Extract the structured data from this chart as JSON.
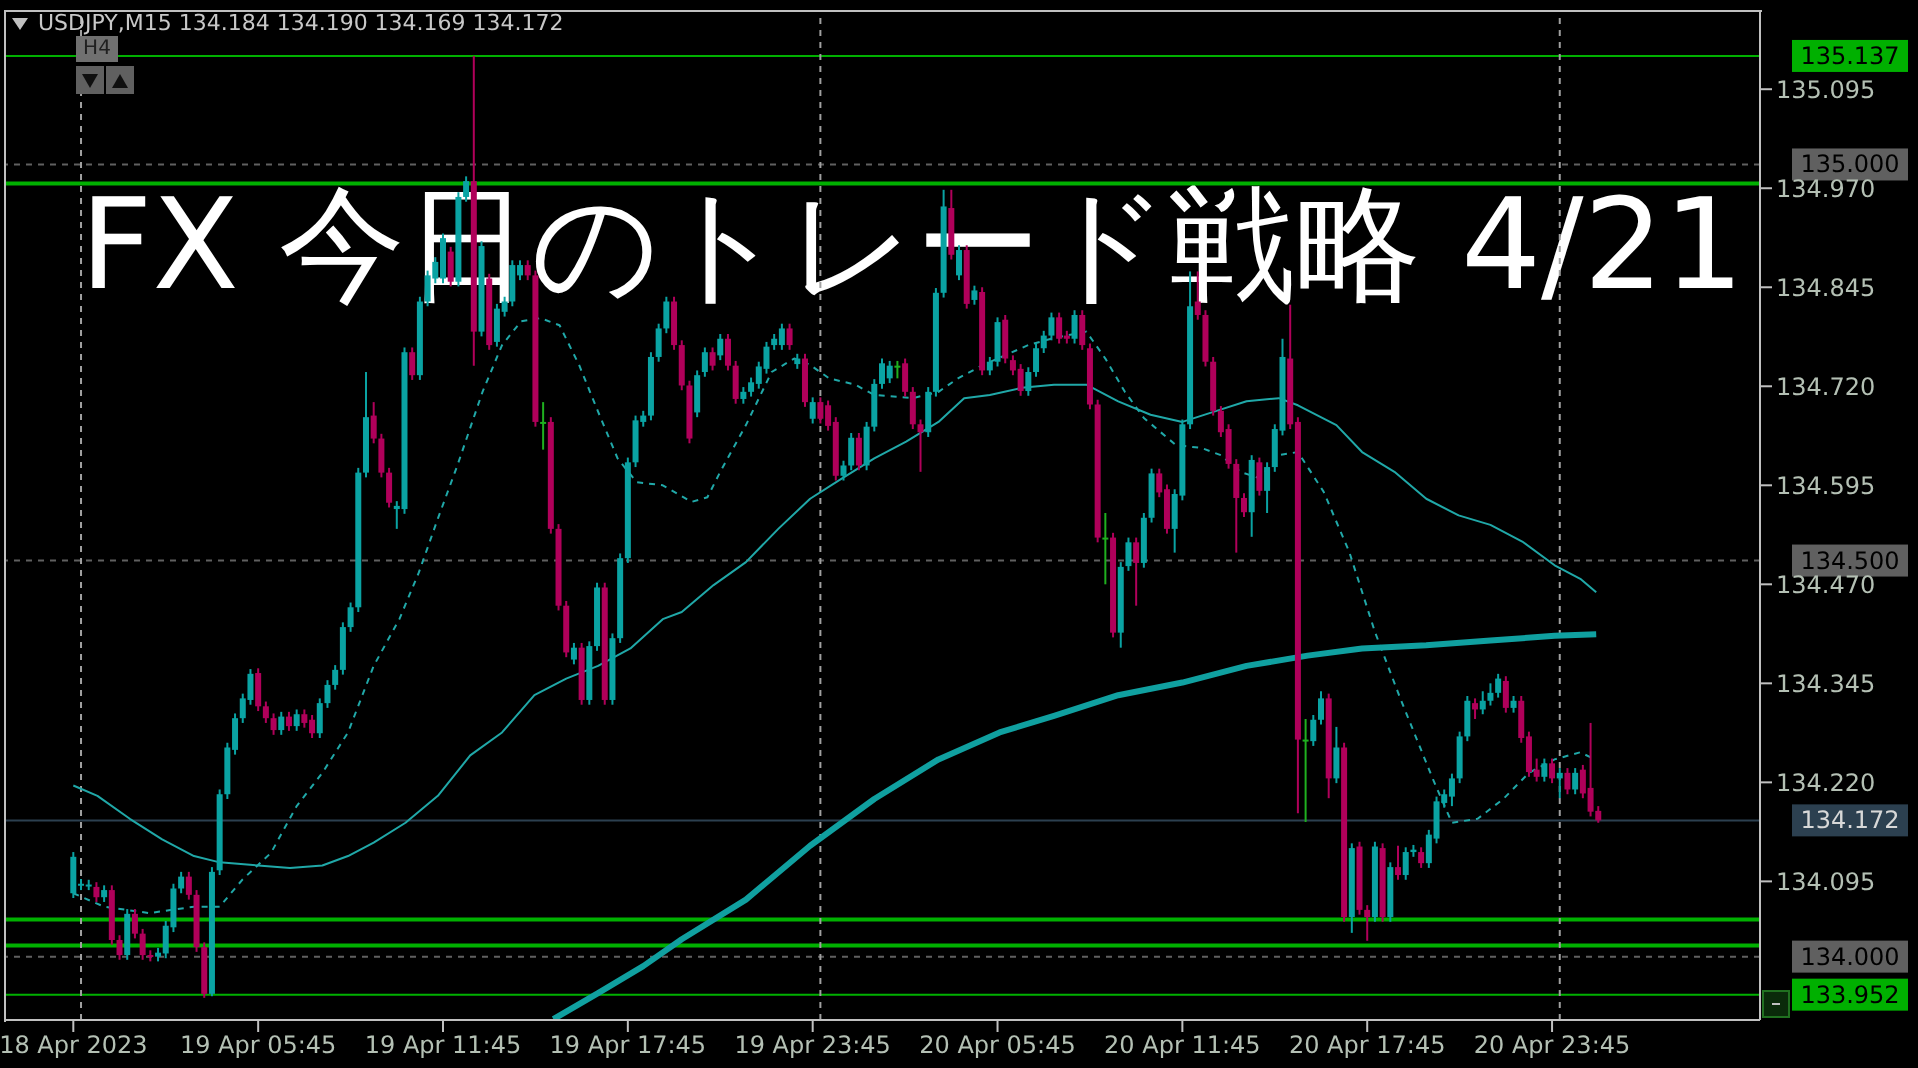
{
  "chart_data": {
    "type": "candlestick",
    "title": "FX 今日のトレード戦略 4/21",
    "annotations": [
      "USDJPY,M15 134.184 134.190 134.169 134.172",
      "H4"
    ],
    "xlim": [
      "2023-04-18T21:30",
      "2023-04-21T06:30"
    ],
    "xticks": [
      {
        "value": "2023-04-18T23:45",
        "label": "18 Apr 2023"
      },
      {
        "value": "2023-04-19T05:45",
        "label": "19 Apr 05:45"
      },
      {
        "value": "2023-04-19T11:45",
        "label": "19 Apr 11:45"
      },
      {
        "value": "2023-04-19T17:45",
        "label": "19 Apr 17:45"
      },
      {
        "value": "2023-04-19T23:45",
        "label": "19 Apr 23:45"
      },
      {
        "value": "2023-04-20T05:45",
        "label": "20 Apr 05:45"
      },
      {
        "value": "2023-04-20T11:45",
        "label": "20 Apr 11:45"
      },
      {
        "value": "2023-04-20T17:45",
        "label": "20 Apr 17:45"
      },
      {
        "value": "2023-04-20T23:45",
        "label": "20 Apr 23:45"
      }
    ],
    "ylim": [
      133.92,
      135.195
    ],
    "yticks": [
      134.095,
      {
        "value": 134.22,
        "label": "134.220"
      },
      134.345,
      {
        "value": 134.47,
        "label": "134.470"
      },
      134.595,
      {
        "value": 134.72,
        "label": "134.720"
      },
      134.845,
      {
        "value": 134.97,
        "label": "134.970"
      },
      135.095
    ],
    "x": [
      "2023-04-18T23:45",
      "2023-04-19T00:00",
      "2023-04-19T00:15",
      "2023-04-19T00:30",
      "2023-04-19T00:45",
      "2023-04-19T01:00",
      "2023-04-19T01:15",
      "2023-04-19T01:30",
      "2023-04-19T01:45",
      "2023-04-19T02:00",
      "2023-04-19T02:15",
      "2023-04-19T02:30",
      "2023-04-19T02:45",
      "2023-04-19T03:00",
      "2023-04-19T03:15",
      "2023-04-19T03:30",
      "2023-04-19T03:45",
      "2023-04-19T04:00",
      "2023-04-19T04:15",
      "2023-04-19T04:30",
      "2023-04-19T04:45",
      "2023-04-19T05:00",
      "2023-04-19T05:15",
      "2023-04-19T05:30",
      "2023-04-19T05:45",
      "2023-04-19T06:00",
      "2023-04-19T06:15",
      "2023-04-19T06:30",
      "2023-04-19T06:45",
      "2023-04-19T07:00",
      "2023-04-19T07:15",
      "2023-04-19T07:30",
      "2023-04-19T07:45",
      "2023-04-19T08:00",
      "2023-04-19T08:15",
      "2023-04-19T08:30",
      "2023-04-19T08:45",
      "2023-04-19T09:00",
      "2023-04-19T09:15",
      "2023-04-19T09:30",
      "2023-04-19T09:45",
      "2023-04-19T10:00",
      "2023-04-19T10:15",
      "2023-04-19T10:30",
      "2023-04-19T10:45",
      "2023-04-19T11:00",
      "2023-04-19T11:15",
      "2023-04-19T11:30",
      "2023-04-19T11:45",
      "2023-04-19T12:00",
      "2023-04-19T12:15",
      "2023-04-19T12:30",
      "2023-04-19T12:45",
      "2023-04-19T13:00",
      "2023-04-19T13:15",
      "2023-04-19T13:30",
      "2023-04-19T13:45",
      "2023-04-19T14:00",
      "2023-04-19T14:15",
      "2023-04-19T14:30",
      "2023-04-19T14:45",
      "2023-04-19T15:00",
      "2023-04-19T15:15",
      "2023-04-19T15:30",
      "2023-04-19T15:45",
      "2023-04-19T16:00",
      "2023-04-19T16:15",
      "2023-04-19T16:30",
      "2023-04-19T16:45",
      "2023-04-19T17:00",
      "2023-04-19T17:15",
      "2023-04-19T17:30",
      "2023-04-19T17:45",
      "2023-04-19T18:00",
      "2023-04-19T18:15",
      "2023-04-19T18:30",
      "2023-04-19T18:45",
      "2023-04-19T19:00",
      "2023-04-19T19:15",
      "2023-04-19T19:30",
      "2023-04-19T19:45",
      "2023-04-19T20:00",
      "2023-04-19T20:15",
      "2023-04-19T20:30",
      "2023-04-19T20:45",
      "2023-04-19T21:00",
      "2023-04-19T21:15",
      "2023-04-19T21:30",
      "2023-04-19T21:45",
      "2023-04-19T22:00",
      "2023-04-19T22:15",
      "2023-04-19T22:30",
      "2023-04-19T22:45",
      "2023-04-19T23:00",
      "2023-04-19T23:15",
      "2023-04-19T23:30",
      "2023-04-19T23:45",
      "2023-04-20T00:00",
      "2023-04-20T00:15",
      "2023-04-20T00:30",
      "2023-04-20T00:45",
      "2023-04-20T01:00",
      "2023-04-20T01:15",
      "2023-04-20T01:30",
      "2023-04-20T01:45",
      "2023-04-20T02:00",
      "2023-04-20T02:15",
      "2023-04-20T02:30",
      "2023-04-20T02:45",
      "2023-04-20T03:00",
      "2023-04-20T03:15",
      "2023-04-20T03:30",
      "2023-04-20T03:45",
      "2023-04-20T04:00",
      "2023-04-20T04:15",
      "2023-04-20T04:30",
      "2023-04-20T04:45",
      "2023-04-20T05:00",
      "2023-04-20T05:15",
      "2023-04-20T05:30",
      "2023-04-20T05:45",
      "2023-04-20T06:00",
      "2023-04-20T06:15",
      "2023-04-20T06:30",
      "2023-04-20T06:45",
      "2023-04-20T07:00",
      "2023-04-20T07:15",
      "2023-04-20T07:30",
      "2023-04-20T07:45",
      "2023-04-20T08:00",
      "2023-04-20T08:15",
      "2023-04-20T08:30",
      "2023-04-20T08:45",
      "2023-04-20T09:00",
      "2023-04-20T09:15",
      "2023-04-20T09:30",
      "2023-04-20T09:45",
      "2023-04-20T10:00",
      "2023-04-20T10:15",
      "2023-04-20T10:30",
      "2023-04-20T10:45",
      "2023-04-20T11:00",
      "2023-04-20T11:15",
      "2023-04-20T11:30",
      "2023-04-20T11:45",
      "2023-04-20T12:00",
      "2023-04-20T12:15",
      "2023-04-20T12:30",
      "2023-04-20T12:45",
      "2023-04-20T13:00",
      "2023-04-20T13:15",
      "2023-04-20T13:30",
      "2023-04-20T13:45",
      "2023-04-20T14:00",
      "2023-04-20T14:15",
      "2023-04-20T14:30",
      "2023-04-20T14:45",
      "2023-04-20T15:00",
      "2023-04-20T15:15",
      "2023-04-20T15:30",
      "2023-04-20T15:45",
      "2023-04-20T16:00",
      "2023-04-20T16:15",
      "2023-04-20T16:30",
      "2023-04-20T16:45",
      "2023-04-20T17:00",
      "2023-04-20T17:15",
      "2023-04-20T17:30",
      "2023-04-20T17:45",
      "2023-04-20T18:00",
      "2023-04-20T18:15",
      "2023-04-20T18:30",
      "2023-04-20T18:45",
      "2023-04-20T19:00",
      "2023-04-20T19:15",
      "2023-04-20T19:30",
      "2023-04-20T19:45",
      "2023-04-20T20:00",
      "2023-04-20T20:15",
      "2023-04-20T20:30",
      "2023-04-20T20:45",
      "2023-04-20T21:00",
      "2023-04-20T21:15",
      "2023-04-20T21:30",
      "2023-04-20T21:45",
      "2023-04-20T22:00",
      "2023-04-20T22:15",
      "2023-04-20T22:30",
      "2023-04-20T22:45",
      "2023-04-20T23:00",
      "2023-04-20T23:15",
      "2023-04-20T23:30",
      "2023-04-20T23:45",
      "2023-04-21T00:00",
      "2023-04-21T00:15",
      "2023-04-21T00:30",
      "2023-04-21T00:45",
      "2023-04-21T01:00",
      "2023-04-21T01:15"
    ],
    "ohlc": [
      [
        134.08,
        134.132,
        134.074,
        134.126
      ],
      [
        134.09,
        134.098,
        134.084,
        134.092
      ],
      [
        134.09,
        134.097,
        134.084,
        134.091
      ],
      [
        134.088,
        134.094,
        134.069,
        134.075
      ],
      [
        134.075,
        134.09,
        134.069,
        134.084
      ],
      [
        134.084,
        134.09,
        134.015,
        134.021
      ],
      [
        134.021,
        134.027,
        133.996,
        134.002
      ],
      [
        134.002,
        134.06,
        133.996,
        134.054
      ],
      [
        134.054,
        134.06,
        134.023,
        134.029
      ],
      [
        134.029,
        134.035,
        133.996,
        134.002
      ],
      [
        134.002,
        134.008,
        133.994,
        134.0
      ],
      [
        134.0,
        134.011,
        133.994,
        134.005
      ],
      [
        134.004,
        134.045,
        133.998,
        134.039
      ],
      [
        134.037,
        134.092,
        134.031,
        134.086
      ],
      [
        134.086,
        134.107,
        134.08,
        134.101
      ],
      [
        134.101,
        134.107,
        134.072,
        134.078
      ],
      [
        134.078,
        134.084,
        134.006,
        134.012
      ],
      [
        134.012,
        134.018,
        133.948,
        133.953
      ],
      [
        133.953,
        134.113,
        133.95,
        134.107
      ],
      [
        134.109,
        134.211,
        134.103,
        134.205
      ],
      [
        134.205,
        134.27,
        134.199,
        134.264
      ],
      [
        134.261,
        134.307,
        134.255,
        134.301
      ],
      [
        134.301,
        134.332,
        134.295,
        134.326
      ],
      [
        134.324,
        134.363,
        134.318,
        134.357
      ],
      [
        134.358,
        134.364,
        134.31,
        134.316
      ],
      [
        134.316,
        134.322,
        134.295,
        134.301
      ],
      [
        134.301,
        134.307,
        134.28,
        134.286
      ],
      [
        134.286,
        134.309,
        134.28,
        134.303
      ],
      [
        134.303,
        134.309,
        134.285,
        134.291
      ],
      [
        134.291,
        134.312,
        134.285,
        134.306
      ],
      [
        134.306,
        134.312,
        134.289,
        134.295
      ],
      [
        134.299,
        134.305,
        134.276,
        134.282
      ],
      [
        134.282,
        134.326,
        134.276,
        134.32
      ],
      [
        134.32,
        134.349,
        134.314,
        134.343
      ],
      [
        134.343,
        134.368,
        134.337,
        134.362
      ],
      [
        134.362,
        134.422,
        134.356,
        134.416
      ],
      [
        134.416,
        134.447,
        134.41,
        134.441
      ],
      [
        134.441,
        134.617,
        134.435,
        134.611
      ],
      [
        134.611,
        134.738,
        134.605,
        134.681
      ],
      [
        134.683,
        134.7,
        134.648,
        134.654
      ],
      [
        134.654,
        134.66,
        134.605,
        134.611
      ],
      [
        134.611,
        134.617,
        134.567,
        134.573
      ],
      [
        134.565,
        134.575,
        134.54,
        134.569
      ],
      [
        134.565,
        134.769,
        134.559,
        134.763
      ],
      [
        134.763,
        134.769,
        134.728,
        134.734
      ],
      [
        134.734,
        134.833,
        134.728,
        134.827
      ],
      [
        134.827,
        134.866,
        134.821,
        134.86
      ],
      [
        134.856,
        134.883,
        134.85,
        134.877
      ],
      [
        134.856,
        134.913,
        134.85,
        134.907
      ],
      [
        134.89,
        134.896,
        134.846,
        134.852
      ],
      [
        134.852,
        134.965,
        134.846,
        134.959
      ],
      [
        134.959,
        134.985,
        134.953,
        134.979
      ],
      [
        134.979,
        135.137,
        134.746,
        134.789
      ],
      [
        134.789,
        134.903,
        134.783,
        134.897
      ],
      [
        134.856,
        134.862,
        134.766,
        134.772
      ],
      [
        134.776,
        134.824,
        134.77,
        134.818
      ],
      [
        134.814,
        134.833,
        134.808,
        134.827
      ],
      [
        134.827,
        134.879,
        134.821,
        134.873
      ],
      [
        134.86,
        134.879,
        134.854,
        134.873
      ],
      [
        134.873,
        134.879,
        134.854,
        134.86
      ],
      [
        134.86,
        134.866,
        134.669,
        134.675
      ],
      [
        134.675,
        134.7,
        134.64,
        134.675
      ],
      [
        134.675,
        134.681,
        134.534,
        134.54
      ],
      [
        134.54,
        134.546,
        134.437,
        134.443
      ],
      [
        134.443,
        134.449,
        134.378,
        134.384
      ],
      [
        134.375,
        134.396,
        134.369,
        134.39
      ],
      [
        134.39,
        134.396,
        134.318,
        134.324
      ],
      [
        134.324,
        134.398,
        134.318,
        134.392
      ],
      [
        134.392,
        134.472,
        134.386,
        134.466
      ],
      [
        134.466,
        134.472,
        134.318,
        134.324
      ],
      [
        134.324,
        134.408,
        134.318,
        134.402
      ],
      [
        134.402,
        134.509,
        134.396,
        134.503
      ],
      [
        134.503,
        134.63,
        134.497,
        134.624
      ],
      [
        134.624,
        134.683,
        134.618,
        134.677
      ],
      [
        134.675,
        134.689,
        134.669,
        134.683
      ],
      [
        134.683,
        134.763,
        134.677,
        134.757
      ],
      [
        134.757,
        134.799,
        134.751,
        134.793
      ],
      [
        134.793,
        134.833,
        134.787,
        134.827
      ],
      [
        134.827,
        134.833,
        134.766,
        134.772
      ],
      [
        134.772,
        134.778,
        134.715,
        134.721
      ],
      [
        134.721,
        134.727,
        134.648,
        134.654
      ],
      [
        134.687,
        134.74,
        134.681,
        134.734
      ],
      [
        134.738,
        134.769,
        134.732,
        134.763
      ],
      [
        134.763,
        134.769,
        134.74,
        134.746
      ],
      [
        134.759,
        134.786,
        134.753,
        134.78
      ],
      [
        134.78,
        134.786,
        134.74,
        134.746
      ],
      [
        134.746,
        134.752,
        134.698,
        134.704
      ],
      [
        134.704,
        134.719,
        134.698,
        134.713
      ],
      [
        134.713,
        134.731,
        134.707,
        134.725
      ],
      [
        134.723,
        134.751,
        134.717,
        134.745
      ],
      [
        134.742,
        134.776,
        134.736,
        134.77
      ],
      [
        134.772,
        134.786,
        134.766,
        134.78
      ],
      [
        134.772,
        134.799,
        134.766,
        134.793
      ],
      [
        134.793,
        134.799,
        134.766,
        134.772
      ],
      [
        134.748,
        134.761,
        134.742,
        134.755
      ],
      [
        134.755,
        134.761,
        134.694,
        134.7
      ],
      [
        134.679,
        134.706,
        134.673,
        134.7
      ],
      [
        134.7,
        134.706,
        134.673,
        134.679
      ],
      [
        134.696,
        134.702,
        134.664,
        134.67
      ],
      [
        134.675,
        134.681,
        134.601,
        134.607
      ],
      [
        134.607,
        134.626,
        134.601,
        134.62
      ],
      [
        134.62,
        134.661,
        134.614,
        134.655
      ],
      [
        134.655,
        134.661,
        134.614,
        134.62
      ],
      [
        134.62,
        134.675,
        134.614,
        134.669
      ],
      [
        134.669,
        134.729,
        134.663,
        134.723
      ],
      [
        134.723,
        134.755,
        134.717,
        134.749
      ],
      [
        134.73,
        134.752,
        134.724,
        134.746
      ],
      [
        134.746,
        134.752,
        134.73,
        134.746
      ],
      [
        134.749,
        134.755,
        134.707,
        134.713
      ],
      [
        134.713,
        134.719,
        134.666,
        134.672
      ],
      [
        134.672,
        134.678,
        134.612,
        134.662
      ],
      [
        134.662,
        134.719,
        134.656,
        134.713
      ],
      [
        134.713,
        134.844,
        134.707,
        134.838
      ],
      [
        134.838,
        134.968,
        134.832,
        134.947
      ],
      [
        134.945,
        134.968,
        134.88,
        134.886
      ],
      [
        134.86,
        134.898,
        134.854,
        134.892
      ],
      [
        134.892,
        134.898,
        134.818,
        134.824
      ],
      [
        134.829,
        134.847,
        134.823,
        134.841
      ],
      [
        134.839,
        134.845,
        134.734,
        134.74
      ],
      [
        134.74,
        134.757,
        134.734,
        134.751
      ],
      [
        134.751,
        134.807,
        134.745,
        134.801
      ],
      [
        134.804,
        134.81,
        134.749,
        134.755
      ],
      [
        134.753,
        134.759,
        134.734,
        134.74
      ],
      [
        134.742,
        134.748,
        134.708,
        134.714
      ],
      [
        134.714,
        134.744,
        134.708,
        134.738
      ],
      [
        134.738,
        134.774,
        134.732,
        134.768
      ],
      [
        134.768,
        134.79,
        134.762,
        134.784
      ],
      [
        134.784,
        134.813,
        134.778,
        134.807
      ],
      [
        134.807,
        134.813,
        134.774,
        134.78
      ],
      [
        134.784,
        134.79,
        134.774,
        134.78
      ],
      [
        134.78,
        134.816,
        134.774,
        134.81
      ],
      [
        134.81,
        134.816,
        134.766,
        134.772
      ],
      [
        134.768,
        134.774,
        134.691,
        134.697
      ],
      [
        134.697,
        134.703,
        134.523,
        134.529
      ],
      [
        134.529,
        134.56,
        134.47,
        134.529
      ],
      [
        134.529,
        134.535,
        134.403,
        134.409
      ],
      [
        134.409,
        134.498,
        134.39,
        134.492
      ],
      [
        134.493,
        134.529,
        134.487,
        134.523
      ],
      [
        134.523,
        134.529,
        134.443,
        134.497
      ],
      [
        134.497,
        134.56,
        134.491,
        134.554
      ],
      [
        134.554,
        134.616,
        134.548,
        134.61
      ],
      [
        134.61,
        134.616,
        134.58,
        134.586
      ],
      [
        134.59,
        134.596,
        134.534,
        134.54
      ],
      [
        134.54,
        134.59,
        134.51,
        134.584
      ],
      [
        134.582,
        134.678,
        134.576,
        134.672
      ],
      [
        134.672,
        134.865,
        134.666,
        134.821
      ],
      [
        134.827,
        134.865,
        134.804,
        134.81
      ],
      [
        134.81,
        134.816,
        134.745,
        134.751
      ],
      [
        134.751,
        134.757,
        134.683,
        134.689
      ],
      [
        134.689,
        134.695,
        134.656,
        134.662
      ],
      [
        134.666,
        134.672,
        134.616,
        134.622
      ],
      [
        134.622,
        134.628,
        134.51,
        134.579
      ],
      [
        134.579,
        134.585,
        134.555,
        134.561
      ],
      [
        134.561,
        134.633,
        134.53,
        134.627
      ],
      [
        134.624,
        134.63,
        134.582,
        134.588
      ],
      [
        134.588,
        134.624,
        134.56,
        134.618
      ],
      [
        134.618,
        134.672,
        134.612,
        134.666
      ],
      [
        134.664,
        134.78,
        134.658,
        134.757
      ],
      [
        134.755,
        134.823,
        134.666,
        134.672
      ],
      [
        134.675,
        134.681,
        134.181,
        134.274
      ],
      [
        134.274,
        134.3,
        134.17,
        134.274
      ],
      [
        134.272,
        134.305,
        134.266,
        134.299
      ],
      [
        134.299,
        134.335,
        134.293,
        134.326
      ],
      [
        134.326,
        134.332,
        134.2,
        134.225
      ],
      [
        134.225,
        134.29,
        134.219,
        134.264
      ],
      [
        134.264,
        134.27,
        134.044,
        134.05
      ],
      [
        134.05,
        134.143,
        134.03,
        134.137
      ],
      [
        134.139,
        134.145,
        134.053,
        134.059
      ],
      [
        134.059,
        134.065,
        134.02,
        134.05
      ],
      [
        134.05,
        134.145,
        134.044,
        134.139
      ],
      [
        134.137,
        134.143,
        134.044,
        134.05
      ],
      [
        134.05,
        134.119,
        134.044,
        134.113
      ],
      [
        134.113,
        134.14,
        134.097,
        134.103
      ],
      [
        134.103,
        134.138,
        134.097,
        134.132
      ],
      [
        134.132,
        134.141,
        134.126,
        134.135
      ],
      [
        134.132,
        134.138,
        134.112,
        134.118
      ],
      [
        134.118,
        134.16,
        134.112,
        134.154
      ],
      [
        134.149,
        134.202,
        134.143,
        134.196
      ],
      [
        134.194,
        134.211,
        134.188,
        134.205
      ],
      [
        134.202,
        134.231,
        134.19,
        134.225
      ],
      [
        134.225,
        134.284,
        134.219,
        134.278
      ],
      [
        134.278,
        134.329,
        134.272,
        134.323
      ],
      [
        134.32,
        134.326,
        134.3,
        134.312
      ],
      [
        134.312,
        134.335,
        134.306,
        134.323
      ],
      [
        134.323,
        134.345,
        134.317,
        134.333
      ],
      [
        134.333,
        134.357,
        134.327,
        134.351
      ],
      [
        134.348,
        134.354,
        134.308,
        134.314
      ],
      [
        134.314,
        134.329,
        134.308,
        134.323
      ],
      [
        134.323,
        134.329,
        134.27,
        134.276
      ],
      [
        134.278,
        134.284,
        134.227,
        134.233
      ],
      [
        134.236,
        134.25,
        134.221,
        134.227
      ],
      [
        134.227,
        134.25,
        134.221,
        134.244
      ],
      [
        134.244,
        134.25,
        134.219,
        134.225
      ],
      [
        134.225,
        134.238,
        134.2,
        134.232
      ],
      [
        134.232,
        134.238,
        134.205,
        134.211
      ],
      [
        134.211,
        134.238,
        134.205,
        134.232
      ],
      [
        134.236,
        134.242,
        134.2,
        134.206
      ],
      [
        134.213,
        134.295,
        134.177,
        134.183
      ],
      [
        134.184,
        134.19,
        134.169,
        134.172
      ]
    ],
    "colors": [
      "#0aa3a3",
      "#0aa3a3",
      "#0aa3a3",
      "#b0005a",
      "#0aa3a3",
      "#b0005a",
      "#b0005a",
      "#0aa3a3",
      "#b0005a",
      "#b0005a",
      "#b0005a",
      "#0aa3a3",
      "#0aa3a3",
      "#0aa3a3",
      "#0aa3a3",
      "#b0005a",
      "#b0005a",
      "#b0005a",
      "#0aa3a3",
      "#0aa3a3",
      "#0aa3a3",
      "#0aa3a3",
      "#0aa3a3",
      "#0aa3a3",
      "#b0005a",
      "#b0005a",
      "#b0005a",
      "#0aa3a3",
      "#b0005a",
      "#0aa3a3",
      "#b0005a",
      "#b0005a",
      "#0aa3a3",
      "#0aa3a3",
      "#0aa3a3",
      "#0aa3a3",
      "#0aa3a3",
      "#0aa3a3",
      "#0aa3a3",
      "#b0005a",
      "#b0005a",
      "#b0005a",
      "#0aa3a3",
      "#0aa3a3",
      "#b0005a",
      "#0aa3a3",
      "#0aa3a3",
      "#0aa3a3",
      "#0aa3a3",
      "#b0005a",
      "#0aa3a3",
      "#0aa3a3",
      "#b0005a",
      "#0aa3a3",
      "#b0005a",
      "#0aa3a3",
      "#0aa3a3",
      "#0aa3a3",
      "#0aa3a3",
      "#b0005a",
      "#b0005a",
      "#1fb01f",
      "#b0005a",
      "#b0005a",
      "#b0005a",
      "#0aa3a3",
      "#b0005a",
      "#0aa3a3",
      "#0aa3a3",
      "#b0005a",
      "#0aa3a3",
      "#0aa3a3",
      "#0aa3a3",
      "#0aa3a3",
      "#0aa3a3",
      "#0aa3a3",
      "#0aa3a3",
      "#0aa3a3",
      "#b0005a",
      "#b0005a",
      "#b0005a",
      "#0aa3a3",
      "#0aa3a3",
      "#b0005a",
      "#0aa3a3",
      "#b0005a",
      "#b0005a",
      "#0aa3a3",
      "#0aa3a3",
      "#0aa3a3",
      "#0aa3a3",
      "#0aa3a3",
      "#0aa3a3",
      "#b0005a",
      "#0aa3a3",
      "#b0005a",
      "#0aa3a3",
      "#b0005a",
      "#b0005a",
      "#b0005a",
      "#0aa3a3",
      "#0aa3a3",
      "#b0005a",
      "#0aa3a3",
      "#0aa3a3",
      "#0aa3a3",
      "#0aa3a3",
      "#1fb01f",
      "#b0005a",
      "#b0005a",
      "#b0005a",
      "#0aa3a3",
      "#0aa3a3",
      "#0aa3a3",
      "#b0005a",
      "#0aa3a3",
      "#b0005a",
      "#0aa3a3",
      "#b0005a",
      "#0aa3a3",
      "#0aa3a3",
      "#b0005a",
      "#b0005a",
      "#b0005a",
      "#0aa3a3",
      "#0aa3a3",
      "#0aa3a3",
      "#0aa3a3",
      "#b0005a",
      "#b0005a",
      "#0aa3a3",
      "#b0005a",
      "#b0005a",
      "#b0005a",
      "#1fb01f",
      "#b0005a",
      "#0aa3a3",
      "#0aa3a3",
      "#b0005a",
      "#0aa3a3",
      "#0aa3a3",
      "#b0005a",
      "#b0005a",
      "#0aa3a3",
      "#0aa3a3",
      "#0aa3a3",
      "#b0005a",
      "#b0005a",
      "#b0005a",
      "#b0005a",
      "#b0005a",
      "#b0005a",
      "#b0005a",
      "#0aa3a3",
      "#b0005a",
      "#0aa3a3",
      "#0aa3a3",
      "#0aa3a3",
      "#b0005a",
      "#b0005a",
      "#1fb01f",
      "#0aa3a3",
      "#0aa3a3",
      "#b0005a",
      "#0aa3a3",
      "#b0005a",
      "#0aa3a3",
      "#b0005a",
      "#b0005a",
      "#0aa3a3",
      "#b0005a",
      "#0aa3a3",
      "#b0005a",
      "#0aa3a3",
      "#0aa3a3",
      "#b0005a",
      "#0aa3a3",
      "#0aa3a3",
      "#0aa3a3",
      "#0aa3a3",
      "#0aa3a3",
      "#0aa3a3",
      "#b0005a",
      "#0aa3a3",
      "#0aa3a3",
      "#0aa3a3",
      "#b0005a",
      "#0aa3a3",
      "#b0005a",
      "#b0005a",
      "#b0005a",
      "#0aa3a3",
      "#b0005a",
      "#0aa3a3",
      "#b0005a",
      "#0aa3a3",
      "#b0005a",
      "#b0005a",
      "#b0005a"
    ],
    "series": [
      {
        "type": "line",
        "color": "#20a8a8",
        "line_style": "dashed",
        "x": [
          "2023-04-18T23:45",
          "2023-04-19T00:45",
          "2023-04-19T02:13",
          "2023-04-19T03:40",
          "2023-04-19T04:30",
          "2023-04-19T05:14",
          "2023-04-19T06:10",
          "2023-04-19T07:00",
          "2023-04-19T07:50",
          "2023-04-19T08:40",
          "2023-04-19T09:30",
          "2023-04-19T10:20",
          "2023-04-19T10:58",
          "2023-04-19T11:35",
          "2023-04-19T12:13",
          "2023-04-19T13:02",
          "2023-04-19T13:40",
          "2023-04-19T14:17",
          "2023-04-19T14:55",
          "2023-04-19T15:32",
          "2023-04-19T16:10",
          "2023-04-19T16:47",
          "2023-04-19T17:25",
          "2023-04-19T18:02",
          "2023-04-19T18:53",
          "2023-04-19T19:49",
          "2023-04-19T20:20",
          "2023-04-19T20:45",
          "2023-04-19T21:35",
          "2023-04-19T22:25",
          "2023-04-19T23:09",
          "2023-04-19T23:40",
          "2023-04-20T00:17",
          "2023-04-20T01:08",
          "2023-04-20T01:45",
          "2023-04-20T03:00",
          "2023-04-20T03:50",
          "2023-04-20T04:28",
          "2023-04-20T05:17",
          "2023-04-20T06:45",
          "2023-04-20T07:35",
          "2023-04-20T08:38",
          "2023-04-20T09:15",
          "2023-04-20T09:53",
          "2023-04-20T10:30",
          "2023-04-20T11:32",
          "2023-04-20T12:23",
          "2023-04-20T13:00",
          "2023-04-20T13:38",
          "2023-04-20T14:15",
          "2023-04-20T14:53",
          "2023-04-20T15:30",
          "2023-04-20T16:20",
          "2023-04-20T17:10",
          "2023-04-20T18:00",
          "2023-04-20T18:50",
          "2023-04-20T19:53",
          "2023-04-20T20:30",
          "2023-04-20T21:20",
          "2023-04-20T22:10",
          "2023-04-20T23:00",
          "2023-04-20T23:50",
          "2023-04-21T00:40",
          "2023-04-21T01:08"
        ],
        "values": [
          134.08,
          134.063,
          134.055,
          134.063,
          134.063,
          134.097,
          134.131,
          134.19,
          134.232,
          134.283,
          134.367,
          134.426,
          134.485,
          134.553,
          134.62,
          134.713,
          134.772,
          134.802,
          134.806,
          134.797,
          134.747,
          134.688,
          134.629,
          134.599,
          134.595,
          134.574,
          134.58,
          134.612,
          134.671,
          134.738,
          134.755,
          134.747,
          134.73,
          134.722,
          134.709,
          134.705,
          134.713,
          134.73,
          134.747,
          134.772,
          134.781,
          134.789,
          134.755,
          134.713,
          134.68,
          134.646,
          134.642,
          134.633,
          134.612,
          134.604,
          134.633,
          134.637,
          134.587,
          134.511,
          134.41,
          134.325,
          134.224,
          134.169,
          134.174,
          134.199,
          134.232,
          134.249,
          134.258,
          134.249
        ]
      },
      {
        "type": "line",
        "color": "#20a8a8",
        "line_style": "solid",
        "x": [
          "2023-04-18T23:45",
          "2023-04-19T00:32",
          "2023-04-19T01:35",
          "2023-04-19T02:38",
          "2023-04-19T03:40",
          "2023-04-19T04:30",
          "2023-04-19T05:45",
          "2023-04-19T06:47",
          "2023-04-19T07:50",
          "2023-04-19T08:40",
          "2023-04-19T09:30",
          "2023-04-19T10:32",
          "2023-04-19T11:35",
          "2023-04-19T12:38",
          "2023-04-19T13:40",
          "2023-04-19T14:43",
          "2023-04-19T15:45",
          "2023-04-19T16:47",
          "2023-04-19T17:50",
          "2023-04-19T18:53",
          "2023-04-19T19:30",
          "2023-04-19T20:32",
          "2023-04-19T21:35",
          "2023-04-19T22:38",
          "2023-04-19T23:40",
          "2023-04-20T00:43",
          "2023-04-20T01:45",
          "2023-04-20T02:47",
          "2023-04-20T03:50",
          "2023-04-20T04:40",
          "2023-04-20T05:30",
          "2023-04-20T06:32",
          "2023-04-20T07:35",
          "2023-04-20T08:38",
          "2023-04-20T09:40",
          "2023-04-20T10:43",
          "2023-04-20T11:45",
          "2023-04-20T12:47",
          "2023-04-20T13:50",
          "2023-04-20T14:53",
          "2023-04-20T15:30",
          "2023-04-20T16:45",
          "2023-04-20T17:35",
          "2023-04-20T18:38",
          "2023-04-20T19:40",
          "2023-04-20T20:43",
          "2023-04-20T21:45",
          "2023-04-20T22:47",
          "2023-04-20T23:50",
          "2023-04-21T00:40",
          "2023-04-21T01:11"
        ],
        "values": [
          134.216,
          134.203,
          134.174,
          134.148,
          134.127,
          134.119,
          134.115,
          134.112,
          134.115,
          134.127,
          134.144,
          134.169,
          134.203,
          134.254,
          134.283,
          134.33,
          134.351,
          134.367,
          134.389,
          134.426,
          134.435,
          134.469,
          134.498,
          134.54,
          134.578,
          134.604,
          134.629,
          134.65,
          134.675,
          134.705,
          134.709,
          134.718,
          134.722,
          134.722,
          134.701,
          134.684,
          134.675,
          134.688,
          134.701,
          134.705,
          134.696,
          134.671,
          134.637,
          134.612,
          134.578,
          134.557,
          134.545,
          134.524,
          134.494,
          134.477,
          134.46
        ]
      },
      {
        "type": "line",
        "color": "#10a0a0",
        "line_style": "solid",
        "x": [
          "2023-04-19T15:20",
          "2023-04-19T16:47",
          "2023-04-19T18:15",
          "2023-04-19T19:30",
          "2023-04-19T21:35",
          "2023-04-19T23:40",
          "2023-04-20T01:45",
          "2023-04-20T03:50",
          "2023-04-20T05:49",
          "2023-04-20T07:35",
          "2023-04-20T09:40",
          "2023-04-20T11:45",
          "2023-04-20T13:50",
          "2023-04-20T15:49",
          "2023-04-20T17:35",
          "2023-04-20T19:40",
          "2023-04-20T21:45",
          "2023-04-20T23:50",
          "2023-04-21T01:11"
        ],
        "values": [
          133.921,
          133.954,
          133.988,
          134.022,
          134.072,
          134.14,
          134.199,
          134.249,
          134.283,
          134.304,
          134.33,
          134.346,
          134.367,
          134.38,
          134.389,
          134.393,
          134.399,
          134.405,
          134.407
        ]
      }
    ],
    "ref_lines": [
      {
        "axis": "y",
        "value": 135.137,
        "label": "135.137",
        "color": "#00b000",
        "line_style": "solid"
      },
      {
        "axis": "y",
        "value": 135.0,
        "label": "135.000",
        "color": "#606060",
        "line_style": "dashed"
      },
      {
        "axis": "y",
        "value": 134.976,
        "color": "#00b000",
        "line_style": "solid"
      },
      {
        "axis": "y",
        "value": 134.5,
        "label": "134.500",
        "color": "#606060",
        "line_style": "dashed"
      },
      {
        "axis": "y",
        "value": 134.172,
        "label": "134.172",
        "color": "#2c4050",
        "line_style": "solid"
      },
      {
        "axis": "y",
        "value": 134.047,
        "color": "#00b000",
        "line_style": "solid"
      },
      {
        "axis": "y",
        "value": 134.014,
        "color": "#00b000",
        "line_style": "solid"
      },
      {
        "axis": "y",
        "value": 134.0,
        "label": "134.000",
        "color": "#606060",
        "line_style": "dashed"
      },
      {
        "axis": "y",
        "value": 133.952,
        "label": "133.952",
        "color": "#00b000",
        "line_style": "solid"
      },
      {
        "axis": "x",
        "value": "2023-04-19T00:00",
        "color": "#a0a0a0",
        "line_style": "dashed"
      },
      {
        "axis": "x",
        "value": "2023-04-20T00:00",
        "color": "#a0a0a0",
        "line_style": "dashed"
      },
      {
        "axis": "x",
        "value": "2023-04-21T00:00",
        "color": "#a0a0a0",
        "line_style": "dashed"
      }
    ]
  }
}
